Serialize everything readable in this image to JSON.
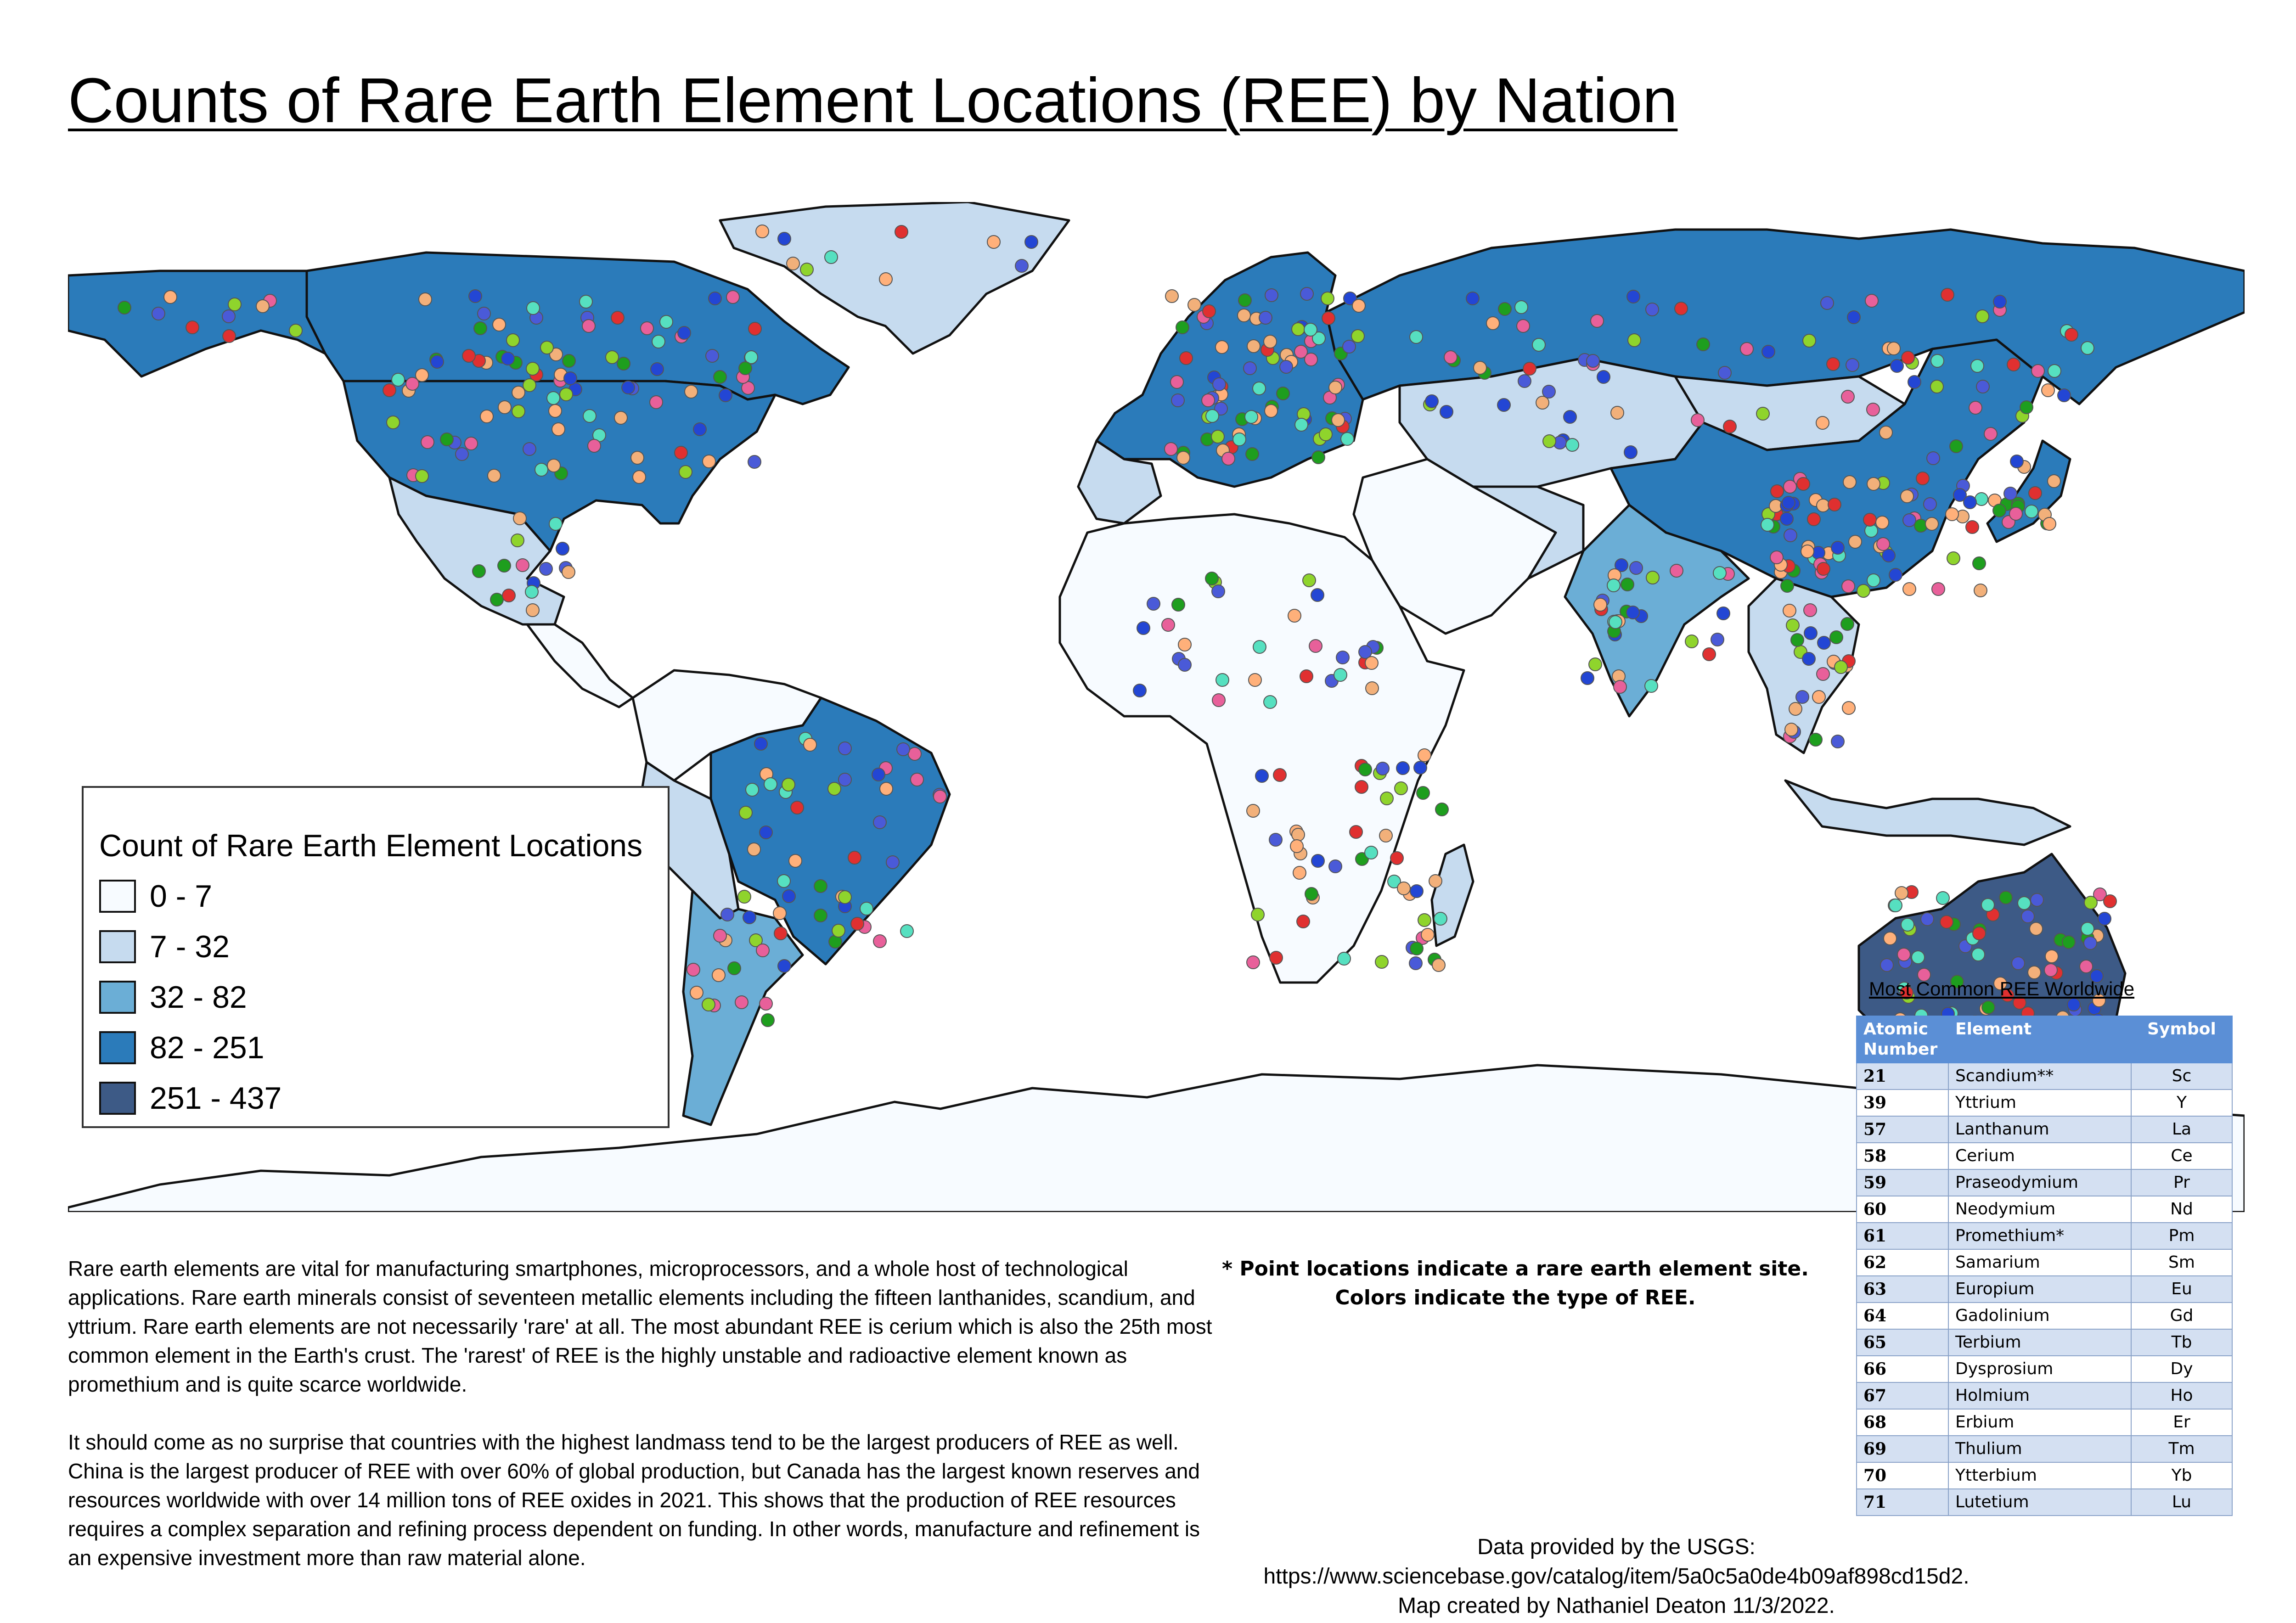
{
  "title": "Counts of Rare Earth Element Locations  (REE) by Nation",
  "legend": {
    "title": "Count of Rare Earth Element Locations",
    "classes": [
      {
        "label": "0 - 7",
        "color": "#f7fbff"
      },
      {
        "label": "7 - 32",
        "color": "#c6dbef"
      },
      {
        "label": "32 - 82",
        "color": "#6baed6"
      },
      {
        "label": "82 - 251",
        "color": "#2b7bba"
      },
      {
        "label": "251 - 437",
        "color": "#3d5a86"
      }
    ]
  },
  "map": {
    "ocean_color": "#ffffff",
    "outline_color": "#111111",
    "point_colors": [
      "#2346d4",
      "#f2b07a",
      "#1e9e1e",
      "#8fd42c",
      "#e8609a",
      "#56e0c0",
      "#e03030",
      "#4a5ad8",
      "#ffb07a"
    ]
  },
  "description": [
    "Rare earth elements are vital for manufacturing smartphones, microprocessors, and a whole host of technological applications. Rare earth minerals consist of seventeen metallic elements including the fifteen lanthanides, scandium, and yttrium. Rare earth elements are not necessarily 'rare' at all. The most abundant REE is cerium which is also the 25th most common element in the Earth's crust. The 'rarest' of REE is the highly unstable and radioactive element known as promethium and is quite scarce worldwide.",
    "It should come as no surprise that countries with the highest landmass tend to be the largest producers of REE as well. China is the largest producer of REE with over 60% of global production, but Canada has the largest known reserves and resources worldwide with over 14 million tons of REE oxides in 2021. This shows that the production of REE resources requires a complex separation and refining process dependent on funding. In other words, manufacture and refinement is an expensive investment more than raw material alone."
  ],
  "note": "* Point locations indicate a rare earth element site. Colors indicate the type of REE.",
  "credit": "Data provided by the USGS: https://www.sciencebase.gov/catalog/item/5a0c5a0de4b09af898cd15d2. Map created by Nathaniel Deaton 11/3/2022.",
  "table": {
    "title": "Most Common REE Worldwide",
    "headers": [
      "Atomic Number",
      "Element",
      "Symbol"
    ],
    "rows": [
      [
        "21",
        "Scandium**",
        "Sc"
      ],
      [
        "39",
        "Yttrium",
        "Y"
      ],
      [
        "57",
        "Lanthanum",
        "La"
      ],
      [
        "58",
        "Cerium",
        "Ce"
      ],
      [
        "59",
        "Praseodymium",
        "Pr"
      ],
      [
        "60",
        "Neodymium",
        "Nd"
      ],
      [
        "61",
        "Promethium*",
        "Pm"
      ],
      [
        "62",
        "Samarium",
        "Sm"
      ],
      [
        "63",
        "Europium",
        "Eu"
      ],
      [
        "64",
        "Gadolinium",
        "Gd"
      ],
      [
        "65",
        "Terbium",
        "Tb"
      ],
      [
        "66",
        "Dysprosium",
        "Dy"
      ],
      [
        "67",
        "Holmium",
        "Ho"
      ],
      [
        "68",
        "Erbium",
        "Er"
      ],
      [
        "69",
        "Thulium",
        "Tm"
      ],
      [
        "70",
        "Ytterbium",
        "Yb"
      ],
      [
        "71",
        "Lutetium",
        "Lu"
      ]
    ]
  }
}
